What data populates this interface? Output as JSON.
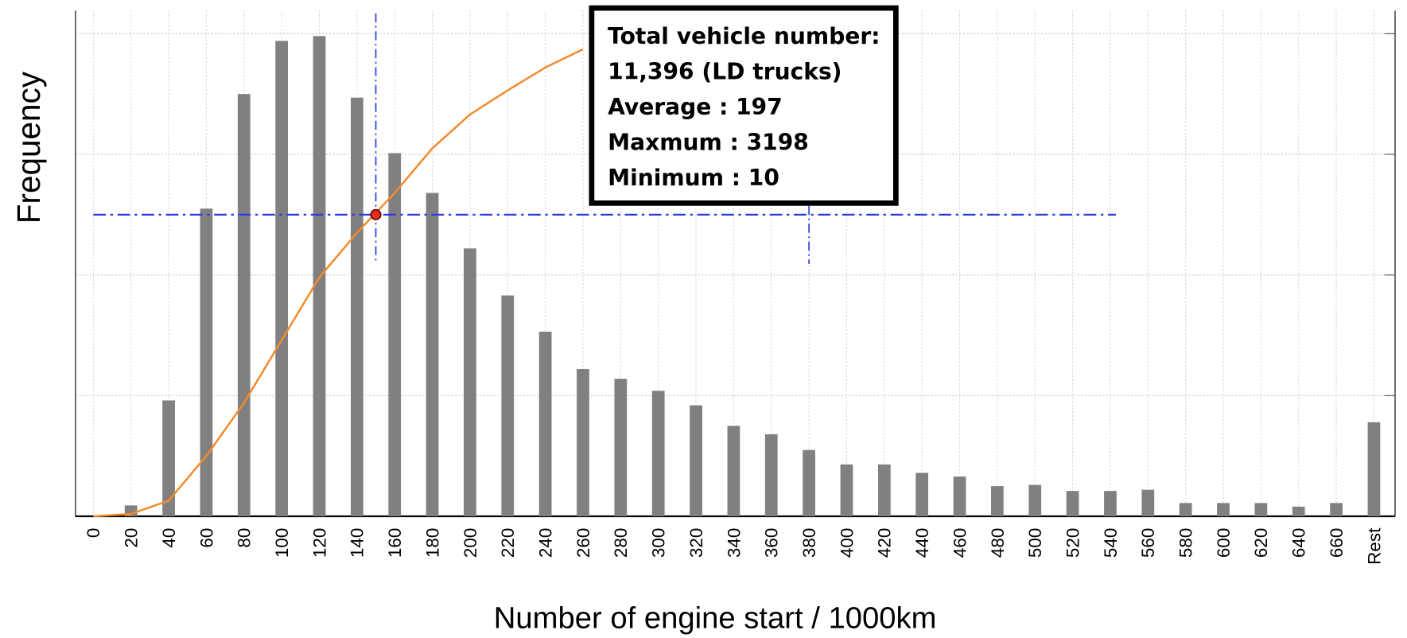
{
  "chart_data": {
    "type": "bar",
    "x_label": "Number of engine start / 1000km",
    "y_label": "Frequency",
    "categories": [
      "0",
      "20",
      "40",
      "60",
      "80",
      "100",
      "120",
      "140",
      "160",
      "180",
      "200",
      "220",
      "240",
      "260",
      "280",
      "300",
      "320",
      "340",
      "360",
      "380",
      "400",
      "420",
      "440",
      "460",
      "480",
      "500",
      "520",
      "540",
      "560",
      "580",
      "600",
      "620",
      "640",
      "660",
      "Rest"
    ],
    "series": [
      {
        "type": "bar",
        "color": "#808080",
        "values": [
          0,
          0.09,
          0.96,
          2.55,
          3.5,
          3.94,
          3.98,
          3.47,
          3.01,
          2.68,
          2.22,
          1.83,
          1.53,
          1.22,
          1.14,
          1.04,
          0.92,
          0.75,
          0.68,
          0.55,
          0.43,
          0.43,
          0.36,
          0.33,
          0.25,
          0.26,
          0.21,
          0.21,
          0.22,
          0.11,
          0.11,
          0.11,
          0.08,
          0.11,
          0.78
        ]
      },
      {
        "type": "line",
        "color": "#f58a2a",
        "values": [
          0,
          0.02,
          0.13,
          0.5,
          0.94,
          1.46,
          1.98,
          2.35,
          2.68,
          3.05,
          3.33,
          3.53,
          3.72,
          3.87,
          null,
          null,
          null,
          null,
          null,
          null,
          null,
          null,
          null,
          null,
          null,
          null,
          null,
          null,
          null,
          null,
          null,
          null,
          null,
          null,
          null
        ]
      }
    ],
    "ylim": [
      0,
      4.19
    ],
    "yticks": [
      0,
      1,
      2,
      3,
      4
    ],
    "grid": true,
    "crosshair": {
      "x": 150,
      "y": 2.5,
      "x2": 380,
      "color": "#2a3fe0"
    },
    "annotation": [
      "Total vehicle number:",
      "11,396 (LD trucks)",
      "Average : 197",
      "Maxmum : 3198",
      "Minimum : 10"
    ]
  }
}
